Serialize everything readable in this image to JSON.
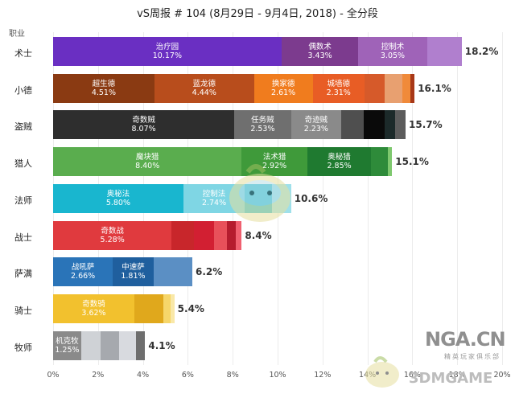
{
  "title": "vS周报 # 104 (8月29日 - 9月4日, 2018) - 全分段",
  "row_header": "职业",
  "watermarks": {
    "nga": "NGA.CN",
    "nga_sub": "精英玩家俱乐部",
    "game": "3DMGAME"
  },
  "colors": {
    "grid": "#ececec",
    "text": "#333333"
  },
  "chart_data": {
    "type": "bar",
    "orientation": "horizontal",
    "stacked": true,
    "xlim": [
      0,
      20
    ],
    "xticks": [
      "0%",
      "2%",
      "4%",
      "6%",
      "8%",
      "10%",
      "12%",
      "14%",
      "16%",
      "18%",
      "20%"
    ],
    "categories": [
      "术士",
      "小德",
      "盗贼",
      "猎人",
      "法师",
      "战士",
      "萨满",
      "骑士",
      "牧师"
    ],
    "totals": [
      "18.2%",
      "16.1%",
      "15.7%",
      "15.1%",
      "10.6%",
      "8.4%",
      "6.2%",
      "5.4%",
      "4.1%"
    ],
    "rows": [
      {
        "class": "术士",
        "total": 18.2,
        "segments": [
          {
            "name": "治疗园",
            "label": "10.17%",
            "value": 10.17,
            "color": "#6a2fc2"
          },
          {
            "name": "偶数术",
            "label": "3.43%",
            "value": 3.43,
            "color": "#7c3b8e"
          },
          {
            "name": "控制术",
            "label": "3.05%",
            "value": 3.05,
            "color": "#9f63b8"
          },
          {
            "value": 1.55,
            "color": "#b07fce"
          }
        ]
      },
      {
        "class": "小德",
        "total": 16.1,
        "segments": [
          {
            "name": "超生德",
            "label": "4.51%",
            "value": 4.51,
            "color": "#8a3a12"
          },
          {
            "name": "蓝龙德",
            "label": "4.44%",
            "value": 4.44,
            "color": "#b84d1c"
          },
          {
            "name": "换家德",
            "label": "2.61%",
            "value": 2.61,
            "color": "#f07c1e"
          },
          {
            "name": "城墙德",
            "label": "2.31%",
            "value": 2.31,
            "color": "#e85d25"
          },
          {
            "value": 0.9,
            "color": "#d65a2a"
          },
          {
            "value": 0.8,
            "color": "#e8a070"
          },
          {
            "value": 0.35,
            "color": "#f08a3a"
          },
          {
            "value": 0.18,
            "color": "#a83818"
          }
        ]
      },
      {
        "class": "盗贼",
        "total": 15.7,
        "segments": [
          {
            "name": "奇数贼",
            "label": "8.07%",
            "value": 8.07,
            "color": "#2e2e2e"
          },
          {
            "name": "任务贼",
            "label": "2.53%",
            "value": 2.53,
            "color": "#6f6f6f"
          },
          {
            "name": "奇迹贼",
            "label": "2.23%",
            "value": 2.23,
            "color": "#8a8a8a"
          },
          {
            "value": 1.0,
            "color": "#4f4f4f"
          },
          {
            "value": 0.95,
            "color": "#0a0a0a"
          },
          {
            "value": 0.45,
            "color": "#1c2a2a"
          },
          {
            "value": 0.47,
            "color": "#5c5c5c"
          }
        ]
      },
      {
        "class": "猎人",
        "total": 15.1,
        "segments": [
          {
            "name": "魔块猎",
            "label": "8.40%",
            "value": 8.4,
            "color": "#5aad4e"
          },
          {
            "name": "法术猎",
            "label": "2.92%",
            "value": 2.92,
            "color": "#3f9a3a"
          },
          {
            "name": "奥秘猎",
            "label": "2.85%",
            "value": 2.85,
            "color": "#1f7a30"
          },
          {
            "value": 0.75,
            "color": "#2e8b3a"
          },
          {
            "value": 0.18,
            "color": "#7ec86e"
          }
        ]
      },
      {
        "class": "法师",
        "total": 10.6,
        "segments": [
          {
            "name": "奥秘法",
            "label": "5.80%",
            "value": 5.8,
            "color": "#19b6cf"
          },
          {
            "name": "控制法",
            "label": "2.74%",
            "value": 2.74,
            "color": "#7fd6e4"
          },
          {
            "value": 1.2,
            "color": "#3fc0d4"
          },
          {
            "value": 0.86,
            "color": "#9fe0ea"
          }
        ]
      },
      {
        "class": "战士",
        "total": 8.4,
        "segments": [
          {
            "name": "奇数战",
            "label": "5.28%",
            "value": 5.28,
            "color": "#e03a3e"
          },
          {
            "value": 1.0,
            "color": "#c8262b"
          },
          {
            "value": 0.9,
            "color": "#d21f32"
          },
          {
            "value": 0.55,
            "color": "#e8505a"
          },
          {
            "value": 0.42,
            "color": "#b51c2e"
          },
          {
            "value": 0.25,
            "color": "#f06070"
          }
        ]
      },
      {
        "class": "萨满",
        "total": 6.2,
        "segments": [
          {
            "name": "战吼萨",
            "label": "2.66%",
            "value": 2.66,
            "color": "#2a74b8"
          },
          {
            "name": "中速萨",
            "label": "1.81%",
            "value": 1.81,
            "color": "#1f5f9e"
          },
          {
            "value": 1.73,
            "color": "#5b8fc4"
          }
        ]
      },
      {
        "class": "骑士",
        "total": 5.4,
        "segments": [
          {
            "name": "奇数骑",
            "label": "3.62%",
            "value": 3.62,
            "color": "#f2c12e"
          },
          {
            "value": 1.3,
            "color": "#e0a81c"
          },
          {
            "value": 0.3,
            "color": "#f6d66a"
          },
          {
            "value": 0.18,
            "color": "#f9e8a8"
          }
        ]
      },
      {
        "class": "牧师",
        "total": 4.1,
        "segments": [
          {
            "name": "机克牧",
            "label": "1.25%",
            "value": 1.25,
            "color": "#8a8a8a"
          },
          {
            "value": 0.85,
            "color": "#cfd2d6"
          },
          {
            "value": 0.85,
            "color": "#a6a9ae"
          },
          {
            "value": 0.75,
            "color": "#d8dadf"
          },
          {
            "value": 0.4,
            "color": "#6e6e6e"
          }
        ]
      }
    ]
  }
}
